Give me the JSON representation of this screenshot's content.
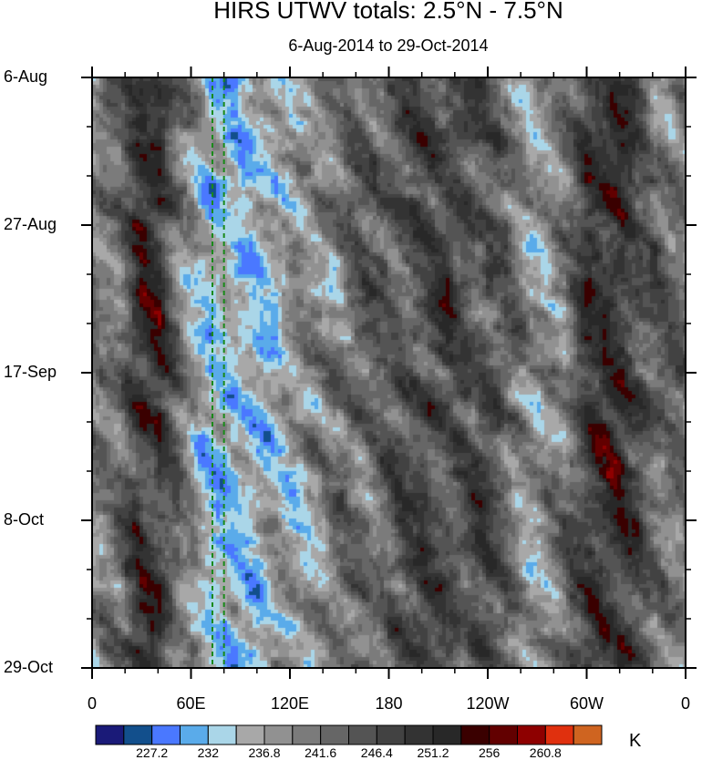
{
  "chart_data": {
    "type": "heatmap",
    "title": "HIRS UTWV totals: 2.5°N - 7.5°N",
    "subtitle": "6-Aug-2014 to 29-Oct-2014",
    "x_ticks": [
      {
        "lon": 0,
        "label": "0"
      },
      {
        "lon": 60,
        "label": "60E"
      },
      {
        "lon": 120,
        "label": "120E"
      },
      {
        "lon": 180,
        "label": "180"
      },
      {
        "lon": 240,
        "label": "120W"
      },
      {
        "lon": 300,
        "label": "60W"
      },
      {
        "lon": 360,
        "label": "0"
      }
    ],
    "y_ticks": [
      {
        "day": 0,
        "label": "6-Aug"
      },
      {
        "day": 21,
        "label": "27-Aug"
      },
      {
        "day": 42,
        "label": "17-Sep"
      },
      {
        "day": 63,
        "label": "8-Oct"
      },
      {
        "day": 84,
        "label": "29-Oct"
      }
    ],
    "xlim": [
      0,
      360
    ],
    "ylim_days": [
      0,
      84
    ],
    "reference_lines_lon": [
      73,
      80
    ],
    "reference_line_color": "#1a8a1a",
    "colorbar": {
      "units": "K",
      "levels": [
        224.8,
        227.2,
        229.6,
        232,
        234.4,
        236.8,
        239.2,
        241.6,
        244,
        246.4,
        248.8,
        251.2,
        253.6,
        256,
        258.4,
        260.8,
        263.2
      ],
      "labels": [
        "227.2",
        "232",
        "236.8",
        "241.6",
        "246.4",
        "251.2",
        "256",
        "260.8"
      ],
      "colors": [
        "#1a1a78",
        "#124f8c",
        "#4a78ff",
        "#5aabea",
        "#aad6e8",
        "#a8a8a8",
        "#919191",
        "#7b7b7b",
        "#666666",
        "#545454",
        "#424242",
        "#333333",
        "#282828",
        "#3a0000",
        "#620000",
        "#8e0000",
        "#e0300e",
        "#cf6420"
      ]
    }
  }
}
